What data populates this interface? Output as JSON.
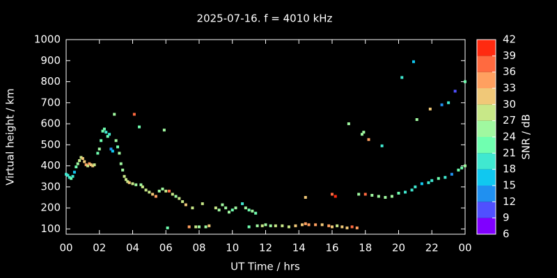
{
  "chart_data": {
    "type": "scatter",
    "title": "2025-07-16. f = 4010 kHz",
    "x_label": "UT Time / hrs",
    "y_label": "Virtual height / km",
    "xlim": [
      0,
      24
    ],
    "xticks": [
      {
        "value": 0,
        "label": "00"
      },
      {
        "value": 2,
        "label": "02"
      },
      {
        "value": 4,
        "label": "04"
      },
      {
        "value": 6,
        "label": "06"
      },
      {
        "value": 8,
        "label": "08"
      },
      10,
      12,
      14,
      16,
      18,
      20,
      22,
      {
        "value": 24,
        "label": "00"
      }
    ],
    "ylim": [
      75,
      1000
    ],
    "yticks": [
      100,
      200,
      300,
      400,
      500,
      600,
      700,
      800,
      900,
      1000
    ],
    "colorbar": {
      "label": "SNR / dB",
      "lim": [
        6,
        42
      ],
      "ticks": [
        6,
        9,
        12,
        15,
        18,
        21,
        24,
        27,
        30,
        33,
        36,
        39,
        42
      ],
      "colors": [
        "#8000ff",
        "#5050ff",
        "#2090f0",
        "#10c8f0",
        "#40e8d0",
        "#70ffb0",
        "#a0f8a0",
        "#c8e888",
        "#f0c878",
        "#ffa060",
        "#ff6a40",
        "#ff2a10"
      ]
    },
    "x": [
      0.0,
      0.1,
      0.2,
      0.3,
      0.4,
      0.5,
      0.6,
      0.7,
      0.8,
      0.9,
      1.0,
      1.1,
      1.2,
      1.3,
      1.4,
      1.5,
      1.6,
      1.7,
      1.9,
      2.0,
      2.1,
      2.2,
      2.3,
      2.4,
      2.5,
      2.6,
      2.7,
      2.8,
      2.9,
      3.0,
      3.1,
      3.2,
      3.3,
      3.4,
      3.5,
      3.6,
      3.7,
      3.8,
      4.0,
      4.1,
      4.2,
      4.4,
      4.5,
      4.6,
      4.8,
      5.0,
      5.2,
      5.4,
      5.6,
      5.8,
      5.9,
      6.0,
      6.1,
      6.2,
      6.4,
      6.6,
      6.8,
      7.0,
      7.2,
      7.4,
      7.6,
      7.8,
      8.0,
      8.2,
      8.4,
      8.6,
      9.0,
      9.2,
      9.4,
      9.6,
      9.8,
      10.0,
      10.2,
      10.6,
      10.8,
      11.0,
      11.2,
      11.4,
      11.0,
      11.5,
      11.8,
      12.0,
      12.3,
      12.6,
      13.0,
      13.4,
      13.8,
      14.2,
      14.4,
      14.6,
      15.0,
      15.4,
      15.8,
      16.0,
      16.3,
      16.6,
      16.9,
      17.2,
      17.5,
      14.4,
      16.0,
      16.2,
      17.0,
      17.6,
      17.8,
      17.9,
      18.0,
      18.2,
      18.4,
      18.8,
      19.0,
      19.2,
      19.6,
      20.0,
      20.2,
      20.4,
      20.8,
      20.9,
      21.0,
      21.1,
      21.4,
      21.8,
      21.9,
      22.0,
      22.4,
      22.6,
      22.8,
      23.0,
      23.2,
      23.4,
      23.6,
      23.8,
      24.0,
      24.0
    ],
    "values": [
      360,
      355,
      345,
      340,
      350,
      370,
      395,
      410,
      425,
      440,
      435,
      420,
      405,
      400,
      410,
      405,
      400,
      405,
      460,
      480,
      520,
      565,
      575,
      560,
      540,
      550,
      480,
      470,
      645,
      520,
      490,
      460,
      410,
      380,
      350,
      335,
      325,
      320,
      315,
      645,
      310,
      585,
      310,
      300,
      285,
      275,
      265,
      255,
      280,
      290,
      570,
      280,
      105,
      280,
      265,
      255,
      245,
      230,
      215,
      110,
      200,
      110,
      110,
      220,
      110,
      115,
      200,
      190,
      215,
      200,
      180,
      190,
      200,
      220,
      200,
      190,
      185,
      175,
      110,
      115,
      115,
      120,
      115,
      115,
      115,
      110,
      115,
      120,
      125,
      120,
      120,
      120,
      115,
      110,
      115,
      110,
      105,
      110,
      105,
      250,
      265,
      255,
      600,
      265,
      550,
      560,
      265,
      525,
      260,
      255,
      495,
      250,
      255,
      270,
      820,
      275,
      285,
      895,
      300,
      620,
      315,
      320,
      670,
      330,
      340,
      690,
      345,
      700,
      360,
      755,
      380,
      390,
      400,
      800
    ],
    "snr": [
      18,
      18,
      18,
      21,
      18,
      15,
      21,
      24,
      27,
      27,
      30,
      30,
      33,
      27,
      33,
      30,
      30,
      27,
      21,
      24,
      21,
      21,
      21,
      18,
      21,
      18,
      12,
      15,
      24,
      24,
      21,
      24,
      24,
      24,
      27,
      27,
      27,
      30,
      27,
      36,
      24,
      21,
      24,
      27,
      27,
      27,
      30,
      33,
      24,
      24,
      24,
      27,
      21,
      36,
      27,
      24,
      27,
      27,
      30,
      33,
      27,
      27,
      24,
      27,
      24,
      30,
      27,
      24,
      24,
      24,
      24,
      21,
      24,
      18,
      24,
      21,
      24,
      21,
      21,
      24,
      27,
      24,
      24,
      27,
      27,
      27,
      30,
      30,
      33,
      33,
      33,
      30,
      33,
      30,
      27,
      30,
      30,
      36,
      33,
      30,
      36,
      39,
      24,
      24,
      24,
      24,
      36,
      33,
      24,
      24,
      18,
      24,
      24,
      21,
      18,
      18,
      18,
      15,
      18,
      24,
      15,
      18,
      30,
      18,
      21,
      12,
      18,
      18,
      12,
      9,
      21,
      21,
      24,
      21
    ]
  }
}
